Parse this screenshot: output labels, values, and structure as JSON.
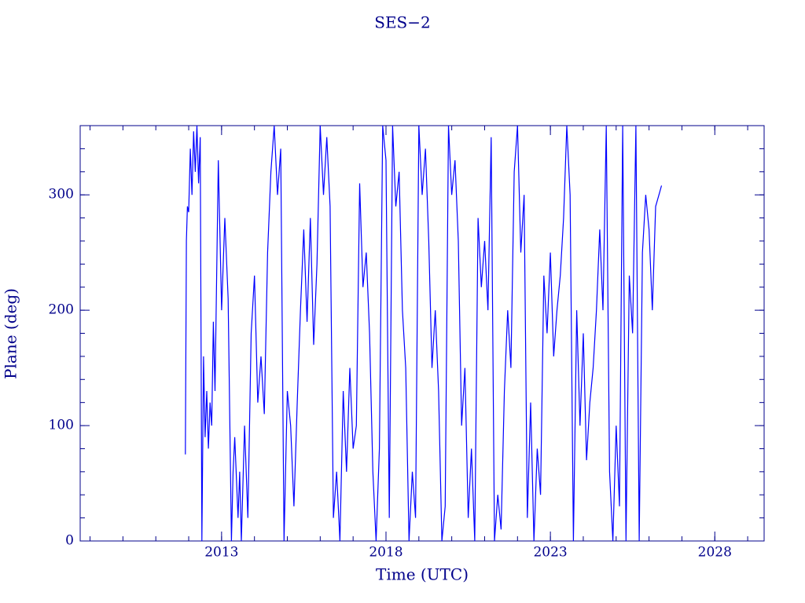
{
  "chart_data": {
    "type": "line",
    "title": "SES−2",
    "x_label": "Time (UTC)",
    "y_label": "Plane (deg)",
    "color": "#0000ff",
    "x": [
      2011.9,
      2011.93,
      2011.96,
      2012.0,
      2012.05,
      2012.1,
      2012.15,
      2012.2,
      2012.25,
      2012.3,
      2012.35,
      2012.4,
      2012.45,
      2012.5,
      2012.55,
      2012.6,
      2012.65,
      2012.7,
      2012.75,
      2012.8,
      2012.9,
      2013.0,
      2013.1,
      2013.2,
      2013.3,
      2013.35,
      2013.4,
      2013.5,
      2013.55,
      2013.6,
      2013.7,
      2013.8,
      2013.9,
      2014.0,
      2014.1,
      2014.2,
      2014.3,
      2014.4,
      2014.5,
      2014.6,
      2014.7,
      2014.8,
      2014.9,
      2015.0,
      2015.1,
      2015.2,
      2015.3,
      2015.4,
      2015.5,
      2015.6,
      2015.7,
      2015.8,
      2015.9,
      2016.0,
      2016.1,
      2016.2,
      2016.3,
      2016.4,
      2016.5,
      2016.6,
      2016.7,
      2016.8,
      2016.9,
      2017.0,
      2017.1,
      2017.2,
      2017.3,
      2017.4,
      2017.5,
      2017.6,
      2017.7,
      2017.8,
      2017.9,
      2018.0,
      2018.1,
      2018.2,
      2018.3,
      2018.4,
      2018.5,
      2018.6,
      2018.7,
      2018.8,
      2018.9,
      2019.0,
      2019.1,
      2019.2,
      2019.3,
      2019.4,
      2019.5,
      2019.6,
      2019.7,
      2019.8,
      2019.9,
      2020.0,
      2020.1,
      2020.2,
      2020.3,
      2020.4,
      2020.5,
      2020.6,
      2020.7,
      2020.8,
      2020.9,
      2021.0,
      2021.1,
      2021.2,
      2021.3,
      2021.4,
      2021.5,
      2021.6,
      2021.7,
      2021.8,
      2021.9,
      2022.0,
      2022.1,
      2022.2,
      2022.3,
      2022.4,
      2022.5,
      2022.6,
      2022.7,
      2022.8,
      2022.9,
      2023.0,
      2023.1,
      2023.2,
      2023.3,
      2023.4,
      2023.5,
      2023.6,
      2023.7,
      2023.8,
      2023.9,
      2024.0,
      2024.1,
      2024.2,
      2024.3,
      2024.4,
      2024.5,
      2024.6,
      2024.7,
      2024.8,
      2024.9,
      2025.0,
      2025.1,
      2025.2,
      2025.3,
      2025.4,
      2025.5,
      2025.6,
      2025.7,
      2025.8,
      2025.9,
      2026.0,
      2026.1,
      2026.2,
      2026.3,
      2026.38
    ],
    "values": [
      75,
      260,
      290,
      285,
      340,
      300,
      355,
      320,
      360,
      310,
      350,
      0,
      160,
      90,
      130,
      80,
      120,
      100,
      190,
      130,
      330,
      200,
      280,
      210,
      0,
      60,
      90,
      20,
      60,
      0,
      100,
      20,
      180,
      230,
      120,
      160,
      110,
      250,
      320,
      360,
      300,
      340,
      0,
      130,
      100,
      30,
      120,
      200,
      270,
      190,
      280,
      170,
      240,
      360,
      300,
      350,
      290,
      20,
      60,
      0,
      130,
      60,
      150,
      80,
      100,
      310,
      220,
      250,
      180,
      60,
      0,
      80,
      360,
      330,
      20,
      360,
      290,
      320,
      200,
      150,
      0,
      60,
      20,
      360,
      300,
      340,
      260,
      150,
      200,
      130,
      0,
      30,
      360,
      300,
      330,
      260,
      100,
      150,
      20,
      80,
      0,
      280,
      220,
      260,
      200,
      350,
      0,
      40,
      10,
      130,
      200,
      150,
      320,
      360,
      250,
      300,
      20,
      120,
      0,
      80,
      40,
      230,
      180,
      250,
      160,
      200,
      230,
      280,
      360,
      300,
      0,
      200,
      100,
      180,
      70,
      120,
      150,
      200,
      270,
      200,
      360,
      60,
      0,
      100,
      30,
      360,
      0,
      230,
      180,
      360,
      0,
      250,
      300,
      270,
      200,
      290,
      300,
      308
    ],
    "xlim": [
      2008.7,
      2029.5
    ],
    "ylim": [
      0,
      360
    ],
    "xticks": [
      2013,
      2018,
      2023,
      2028
    ],
    "yticks": [
      0,
      100,
      200,
      300
    ]
  }
}
